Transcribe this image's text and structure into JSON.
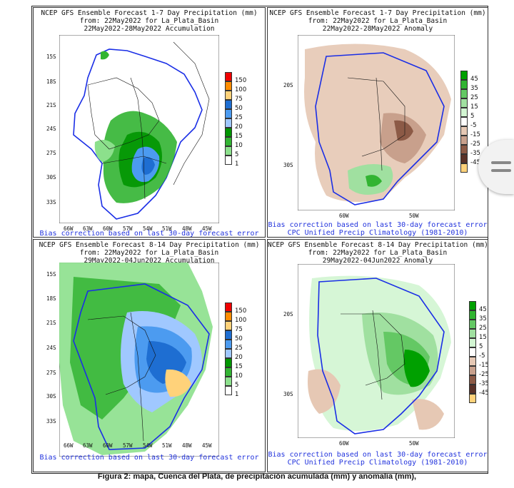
{
  "caption": "Figura 2: mapa, Cuenca del Plata, de precipitación acumulada (mm) y anomalía (mm),",
  "panels": [
    {
      "id": "p1",
      "title1": "NCEP GFS Ensemble Forecast 1-7 Day Precipitation (mm)",
      "title2": "from: 22May2022  for La_Plata_Basin",
      "title3": "22May2022-28May2022 Accumulation",
      "footer": "Bias correction based on last 30-day forecast error",
      "lat_labels": [
        "15S",
        "18S",
        "21S",
        "24S",
        "27S",
        "30S",
        "33S"
      ],
      "lon_labels": [
        "66W",
        "63W",
        "60W",
        "57W",
        "54W",
        "51W",
        "48W",
        "45W"
      ],
      "legend": [
        "150",
        "100",
        "75",
        "50",
        "25",
        "20",
        "15",
        "10",
        "5",
        "1"
      ],
      "legend_colors": [
        "#f00000",
        "#ff8c00",
        "#ffd27a",
        "#1e6ed2",
        "#4c9bf0",
        "#a0c8ff",
        "#009600",
        "#32b432",
        "#8ce08c",
        "#ffffff"
      ]
    },
    {
      "id": "p2",
      "title1": "NCEP GFS Ensemble Forecast 1-7 Day Precipitation (mm)",
      "title2": "from: 22May2022  for La_Plata_Basin",
      "title3": "22May2022-28May2022 Anomaly",
      "footer": "Bias correction based on last 30-day forecast error",
      "footer2": "CPC Unified Precip Climatology (1981-2010)",
      "lat_labels": [
        "20S",
        "30S"
      ],
      "lon_labels": [
        "60W",
        "50W"
      ],
      "legend": [
        "45",
        "35",
        "25",
        "15",
        "5",
        "-5",
        "-15",
        "-25",
        "-35",
        "-45"
      ],
      "legend_colors": [
        "#00a000",
        "#32b432",
        "#64c864",
        "#a0e0a0",
        "#d2f5d2",
        "#ffffff",
        "#e6c8b4",
        "#c8a08c",
        "#8c5a46",
        "#5a3228",
        "#ffd27a"
      ]
    },
    {
      "id": "p3",
      "title1": "NCEP GFS Ensemble Forecast 8-14 Day Precipitation (mm)",
      "title2": "from: 22May2022  for La_Plata_Basin",
      "title3": "29May2022-04Jun2022 Accumulation",
      "footer": "Bias correction based on last 30-day forecast error",
      "lat_labels": [
        "15S",
        "18S",
        "21S",
        "24S",
        "27S",
        "30S",
        "33S"
      ],
      "lon_labels": [
        "66W",
        "63W",
        "60W",
        "57W",
        "54W",
        "51W",
        "48W",
        "45W"
      ],
      "legend": [
        "150",
        "100",
        "75",
        "50",
        "25",
        "20",
        "15",
        "10",
        "5",
        "1"
      ],
      "legend_colors": [
        "#f00000",
        "#ff8c00",
        "#ffd27a",
        "#1e6ed2",
        "#4c9bf0",
        "#a0c8ff",
        "#009600",
        "#32b432",
        "#8ce08c",
        "#ffffff"
      ]
    },
    {
      "id": "p4",
      "title1": "NCEP GFS Ensemble Forecast 8-14 Day Precipitation (mm)",
      "title2": "from: 22May2022  for La_Plata_Basin",
      "title3": "29May2022-04Jun2022 Anomaly",
      "footer": "Bias correction based on last 30-day forecast error",
      "footer2": "CPC Unified Precip Climatology (1981-2010)",
      "lat_labels": [
        "20S",
        "30S"
      ],
      "lon_labels": [
        "60W",
        "50W"
      ],
      "legend": [
        "45",
        "35",
        "25",
        "15",
        "5",
        "-5",
        "-15",
        "-25",
        "-35",
        "-45"
      ],
      "legend_colors": [
        "#00a000",
        "#32b432",
        "#64c864",
        "#a0e0a0",
        "#d2f5d2",
        "#ffffff",
        "#e6c8b4",
        "#c8a08c",
        "#8c5a46",
        "#5a3228",
        "#ffd27a"
      ]
    }
  ],
  "icons": {
    "side_button": "menu-lines-icon"
  }
}
